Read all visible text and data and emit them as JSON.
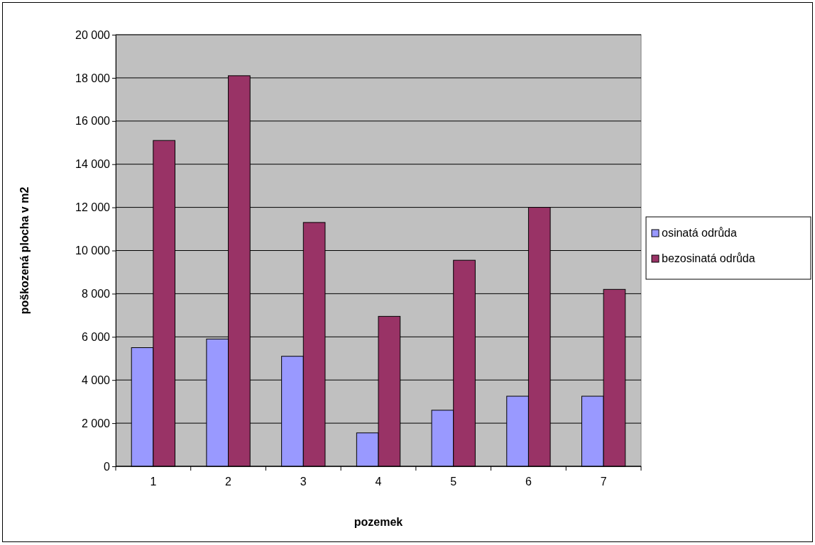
{
  "chart_data": {
    "type": "bar",
    "xlabel": "pozemek",
    "ylabel": "poškozená plocha v m2",
    "categories": [
      "1",
      "2",
      "3",
      "4",
      "5",
      "6",
      "7"
    ],
    "series": [
      {
        "name": "osinatá odrůda",
        "color": "#9999ff",
        "values": [
          5500,
          5900,
          5100,
          1550,
          2600,
          3250,
          3250
        ]
      },
      {
        "name": "bezosinatá odrůda",
        "color": "#993366",
        "values": [
          15100,
          18100,
          11300,
          6950,
          9550,
          12000,
          8200
        ]
      }
    ],
    "ylim": [
      0,
      20000
    ],
    "yticks": [
      {
        "value": 0,
        "label": "0"
      },
      {
        "value": 2000,
        "label": "2 000"
      },
      {
        "value": 4000,
        "label": "4 000"
      },
      {
        "value": 6000,
        "label": "6 000"
      },
      {
        "value": 8000,
        "label": "8 000"
      },
      {
        "value": 10000,
        "label": "10 000"
      },
      {
        "value": 12000,
        "label": "12 000"
      },
      {
        "value": 14000,
        "label": "14 000"
      },
      {
        "value": 16000,
        "label": "16 000"
      },
      {
        "value": 18000,
        "label": "18 000"
      },
      {
        "value": 20000,
        "label": "20 000"
      }
    ],
    "grid": "y",
    "legend": "right"
  }
}
